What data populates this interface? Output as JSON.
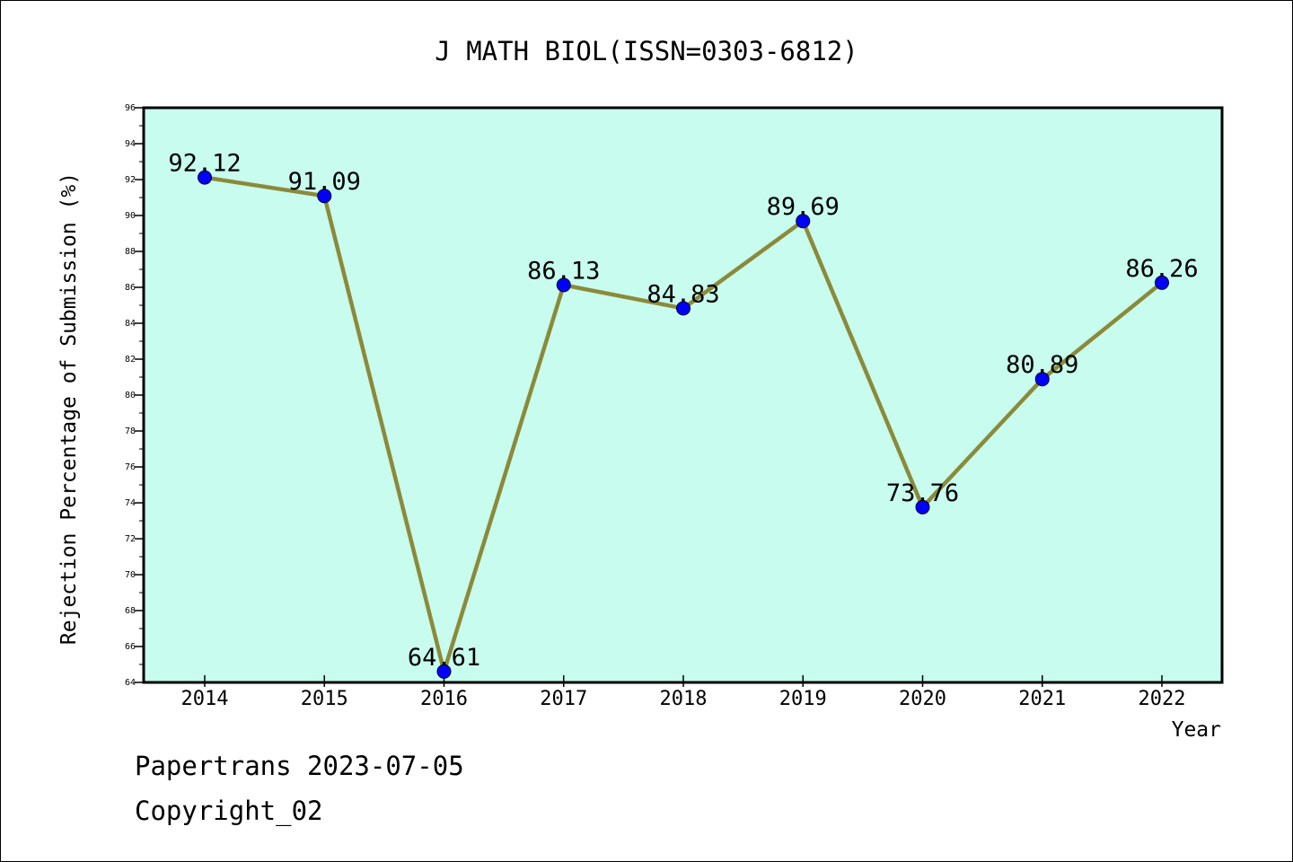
{
  "chart_data": {
    "type": "line",
    "title": "J MATH BIOL(ISSN=0303-6812)",
    "xlabel": "Year",
    "ylabel": "Rejection Percentage of Submission (%)",
    "categories": [
      "2014",
      "2015",
      "2016",
      "2017",
      "2018",
      "2019",
      "2020",
      "2021",
      "2022"
    ],
    "series": [
      {
        "values": [
          92.12,
          91.09,
          64.61,
          86.13,
          84.83,
          89.69,
          73.76,
          80.89,
          86.26
        ],
        "labels": [
          "92.12",
          "91.09",
          "64.61",
          "86.13",
          "84.83",
          "89.69",
          "73.76",
          "80.89",
          "86.26"
        ]
      }
    ],
    "ylim": [
      64,
      96
    ],
    "ytick_step": 2,
    "grid": false,
    "colors": {
      "plot_background": "#c8fcee",
      "line": "#8b8a3a",
      "marker": "#0000ff",
      "axis": "#000000"
    }
  },
  "footer": {
    "line1": "Papertrans 2023-07-05",
    "line2": "Copyright_02"
  }
}
